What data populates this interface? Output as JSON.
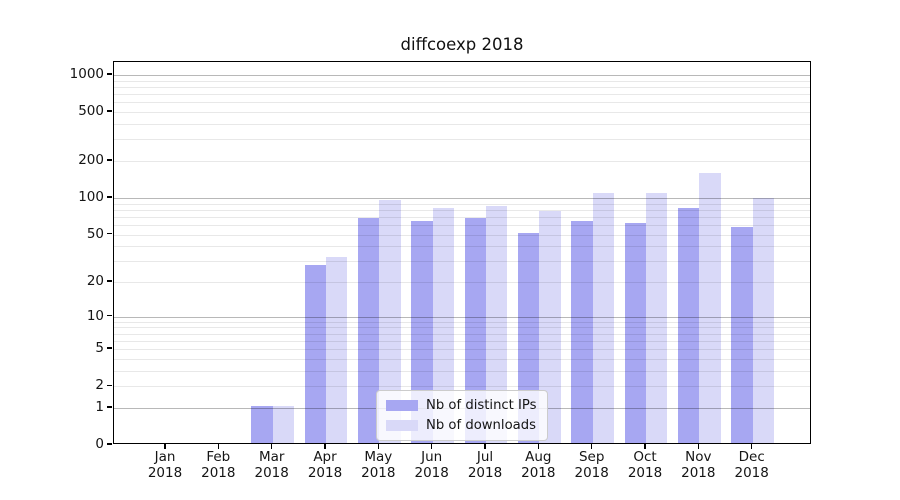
{
  "title": "diffcoexp 2018",
  "chart_data": {
    "type": "bar",
    "title": "diffcoexp 2018",
    "categories": [
      "Jan 2018",
      "Feb 2018",
      "Mar 2018",
      "Apr 2018",
      "May 2018",
      "Jun 2018",
      "Jul 2018",
      "Aug 2018",
      "Sep 2018",
      "Oct 2018",
      "Nov 2018",
      "Dec 2018"
    ],
    "series": [
      {
        "name": "Nb of distinct IPs",
        "color": "#a7a7f2",
        "values": [
          0,
          0,
          1,
          27,
          66,
          62,
          66,
          50,
          62,
          60,
          80,
          56
        ]
      },
      {
        "name": "Nb of downloads",
        "color": "#d9d9f8",
        "values": [
          0,
          0,
          1,
          31,
          93,
          80,
          83,
          75,
          105,
          105,
          153,
          96
        ]
      }
    ],
    "yscale": "log1p",
    "ylim": [
      0,
      1260
    ],
    "yticks": [
      0,
      1,
      2,
      5,
      10,
      20,
      50,
      100,
      200,
      500,
      1000
    ],
    "minor_gridlines": [
      2,
      3,
      4,
      5,
      6,
      7,
      8,
      9,
      20,
      30,
      40,
      50,
      60,
      70,
      80,
      90,
      200,
      300,
      400,
      500,
      600,
      700,
      800,
      900
    ],
    "major_gridlines": [
      1,
      10,
      100,
      1000
    ],
    "grid": "on",
    "legend_position": "inside lower center",
    "xlabel": "",
    "ylabel": ""
  }
}
